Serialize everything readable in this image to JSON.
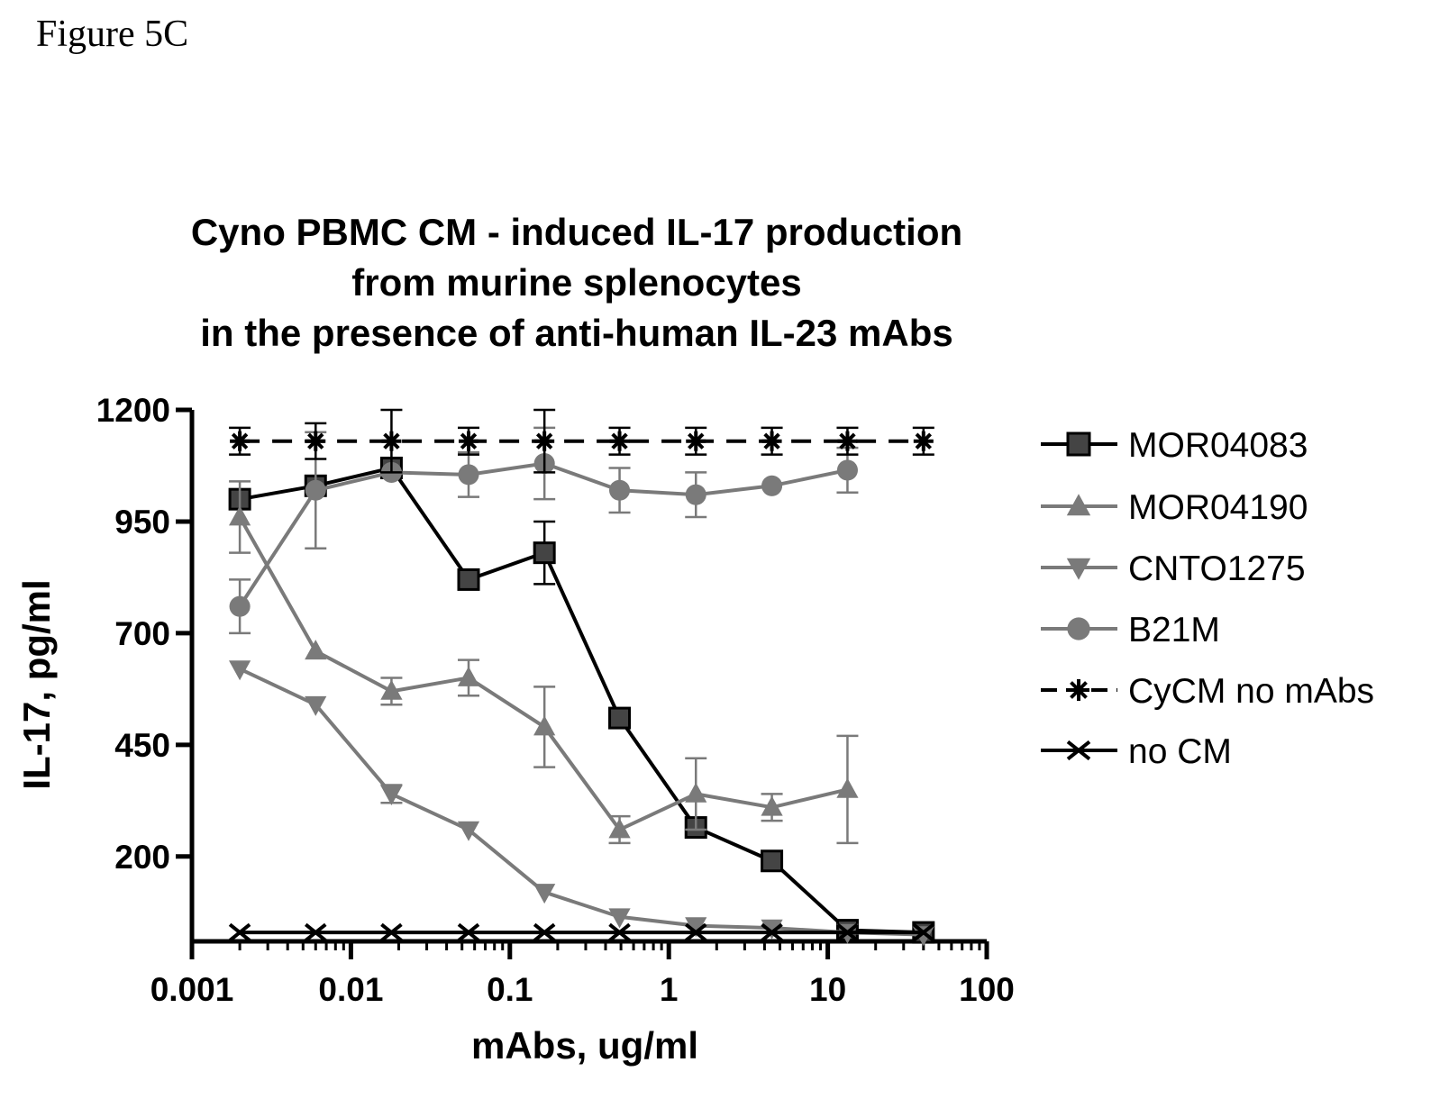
{
  "figure_label": "Figure 5C",
  "chart_data": {
    "type": "line",
    "title": [
      "Cyno PBMC CM - induced IL-17 production",
      "from murine splenocytes",
      "in the presence of anti-human IL-23 mAbs"
    ],
    "xlabel": "mAbs, ug/ml",
    "ylabel": "IL-17, pg/ml",
    "x_scale": "log",
    "xlim": [
      0.001,
      100
    ],
    "ylim": [
      10,
      1200
    ],
    "x_ticks": [
      0.001,
      0.01,
      0.1,
      1,
      10,
      100
    ],
    "x_tick_labels": [
      "0.001",
      "0.01",
      "0.1",
      "1",
      "10",
      "100"
    ],
    "y_ticks": [
      200,
      450,
      700,
      950,
      1200
    ],
    "y_tick_labels": [
      "200",
      "450",
      "700",
      "950",
      "1200"
    ],
    "legend_position": "right",
    "grid": false,
    "series": [
      {
        "name": "MOR04083",
        "color": "#000000",
        "marker": "square",
        "dashed": false,
        "x": [
          0.002,
          0.006,
          0.018,
          0.055,
          0.165,
          0.49,
          1.48,
          4.45,
          13.3,
          40
        ],
        "y": [
          1000,
          1030,
          1070,
          820,
          880,
          510,
          265,
          190,
          35,
          30
        ],
        "err": [
          0,
          0,
          0,
          0,
          70,
          0,
          0,
          0,
          0,
          0
        ]
      },
      {
        "name": "MOR04190",
        "color": "#7a7a7a",
        "marker": "triangle-up",
        "dashed": false,
        "x": [
          0.002,
          0.006,
          0.018,
          0.055,
          0.165,
          0.49,
          1.48,
          4.45,
          13.3
        ],
        "y": [
          960,
          660,
          570,
          600,
          490,
          260,
          340,
          310,
          350
        ],
        "err": [
          80,
          0,
          30,
          40,
          90,
          30,
          80,
          30,
          120
        ]
      },
      {
        "name": "CNTO1275",
        "color": "#7a7a7a",
        "marker": "triangle-down",
        "dashed": false,
        "x": [
          0.002,
          0.006,
          0.018,
          0.055,
          0.165,
          0.49,
          1.48,
          4.45,
          13.3,
          40
        ],
        "y": [
          620,
          540,
          340,
          260,
          120,
          65,
          45,
          40,
          30,
          25
        ],
        "err": [
          0,
          0,
          20,
          0,
          0,
          0,
          0,
          0,
          0,
          0
        ]
      },
      {
        "name": "B21M",
        "color": "#7a7a7a",
        "marker": "circle",
        "dashed": false,
        "x": [
          0.002,
          0.006,
          0.018,
          0.055,
          0.165,
          0.49,
          1.48,
          4.45,
          13.3
        ],
        "y": [
          760,
          1020,
          1060,
          1055,
          1080,
          1020,
          1010,
          1030,
          1065
        ],
        "err": [
          60,
          130,
          0,
          50,
          80,
          50,
          50,
          0,
          50
        ]
      },
      {
        "name": "CyCM no mAbs",
        "color": "#000000",
        "marker": "asterisk",
        "dashed": true,
        "x": [
          0.002,
          0.006,
          0.018,
          0.055,
          0.165,
          0.49,
          1.48,
          4.45,
          13.3,
          40
        ],
        "y": [
          1130,
          1130,
          1130,
          1130,
          1130,
          1130,
          1130,
          1130,
          1130,
          1130
        ],
        "err": [
          30,
          40,
          70,
          30,
          70,
          30,
          30,
          30,
          30,
          30
        ]
      },
      {
        "name": "no CM",
        "color": "#000000",
        "marker": "x",
        "dashed": false,
        "x": [
          0.002,
          0.006,
          0.018,
          0.055,
          0.165,
          0.49,
          1.48,
          4.45,
          13.3,
          40
        ],
        "y": [
          30,
          30,
          30,
          30,
          30,
          30,
          30,
          30,
          30,
          30
        ],
        "err": [
          0,
          0,
          0,
          0,
          0,
          0,
          0,
          0,
          0,
          0
        ]
      }
    ]
  }
}
